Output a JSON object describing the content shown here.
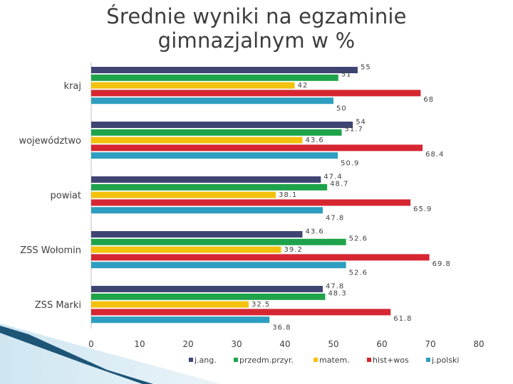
{
  "chart_data": {
    "type": "bar",
    "orientation": "horizontal",
    "title": "Średnie wyniki na egzaminie\ngimnazjalnym w %",
    "categories": [
      "kraj",
      "województwo",
      "powiat",
      "ZSS Wołomin",
      "ZSS Marki"
    ],
    "series": [
      {
        "name": "j.ang.",
        "color": "#3f4573",
        "values": [
          55,
          54,
          47.4,
          43.6,
          47.8
        ],
        "labels": [
          "55",
          "54",
          "47.4",
          "43.6",
          "47.8"
        ]
      },
      {
        "name": "przedm.przyr.",
        "color": "#1ea34a",
        "values": [
          51,
          51.7,
          48.7,
          52.6,
          48.3
        ],
        "labels": [
          "51",
          "51.7",
          "48.7",
          "52.6",
          "48.3"
        ]
      },
      {
        "name": "matem.",
        "color": "#f4c20d",
        "values": [
          42,
          43.6,
          38.1,
          39.2,
          32.5
        ],
        "labels": [
          "42",
          "43.6",
          "38.1",
          "39.2",
          "32.5"
        ]
      },
      {
        "name": "hist+wos",
        "color": "#d62631",
        "values": [
          68,
          68.4,
          65.9,
          69.8,
          61.8
        ],
        "labels": [
          "68",
          "68.4",
          "65.9",
          "69.8",
          "61.8"
        ]
      },
      {
        "name": "j.polski",
        "color": "#2e9ec0",
        "values": [
          50,
          50.9,
          47.8,
          52.6,
          36.8
        ],
        "labels": [
          "50",
          "50.9",
          "47.8",
          "52.6",
          "36.8"
        ]
      }
    ],
    "xlim": [
      0,
      80
    ],
    "xticks": [
      0,
      10,
      20,
      30,
      40,
      50,
      60,
      70,
      80
    ],
    "grid": false,
    "legend_position": "bottom"
  }
}
